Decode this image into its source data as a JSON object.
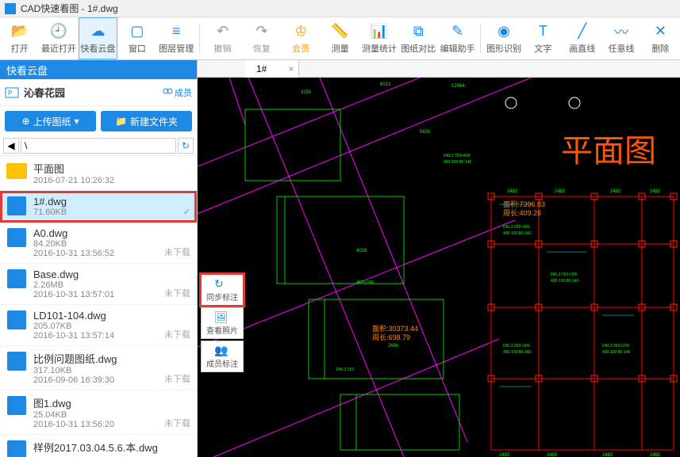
{
  "window": {
    "title": "CAD快速看图 - 1#.dwg"
  },
  "toolbar": [
    {
      "label": "打开",
      "color": "#1e88e5"
    },
    {
      "label": "最近打开",
      "color": "#1e88e5"
    },
    {
      "label": "快看云盘",
      "color": "#1e88e5",
      "active": true
    },
    {
      "label": "窗口",
      "color": "#1e88e5"
    },
    {
      "label": "图层管理",
      "color": "#1e88e5"
    },
    {
      "sep": true
    },
    {
      "label": "撤销",
      "color": "#999"
    },
    {
      "label": "恢复",
      "color": "#999"
    },
    {
      "label": "会员",
      "color": "#ff9800"
    },
    {
      "label": "测量",
      "color": "#1e88e5"
    },
    {
      "label": "测量统计",
      "color": "#1e88e5"
    },
    {
      "label": "图纸对比",
      "color": "#1e88e5"
    },
    {
      "label": "编辑助手",
      "color": "#1e88e5"
    },
    {
      "sep": true
    },
    {
      "label": "图形识别",
      "color": "#1e88e5"
    },
    {
      "label": "文字",
      "color": "#1e88e5"
    },
    {
      "label": "画直线",
      "color": "#1e88e5"
    },
    {
      "label": "任意线",
      "color": "#1e88e5"
    },
    {
      "label": "删除",
      "color": "#1e88e5"
    }
  ],
  "sidebar": {
    "header": "快看云盘",
    "project": "沁春花园",
    "members_label": "成员",
    "upload_btn": "上传图纸",
    "newfolder_btn": "新建文件夹",
    "path": "\\"
  },
  "files": [
    {
      "name": "平面图",
      "meta": "2016-07-21 10:26:32",
      "type": "folder"
    },
    {
      "name": "1#.dwg",
      "size": "71.60KB",
      "meta": "",
      "type": "dwg",
      "selected": true,
      "status": "✓"
    },
    {
      "name": "A0.dwg",
      "size": "84.20KB",
      "meta": "2016-10-31 13:56:52",
      "type": "dwg",
      "status": "未下载"
    },
    {
      "name": "Base.dwg",
      "size": "2.26MB",
      "meta": "2016-10-31 13:57:01",
      "type": "dwg",
      "status": "未下载"
    },
    {
      "name": "LD101-104.dwg",
      "size": "205.07KB",
      "meta": "2016-10-31 13:57:14",
      "type": "dwg",
      "status": "未下载"
    },
    {
      "name": "比例问题图纸.dwg",
      "size": "317.10KB",
      "meta": "2016-09-06 16:39:30",
      "type": "dwg",
      "status": "未下载"
    },
    {
      "name": "图1.dwg",
      "size": "25.04KB",
      "meta": "2016-10-31 13:56:20",
      "type": "dwg",
      "status": "未下载"
    },
    {
      "name": "样例2017.03.04.5.6.本.dwg",
      "size": "",
      "meta": "",
      "type": "dwg"
    }
  ],
  "tab": {
    "name": "1#"
  },
  "vtools": [
    {
      "label": "同步标注",
      "active": true
    },
    {
      "label": "查看照片"
    },
    {
      "label": "成员标注"
    }
  ],
  "drawing": {
    "plan_label": "平面图",
    "area_text1": "面积:7396.83",
    "perim_text1": "周长:409.26",
    "area_text2": "面积:30373.44",
    "perim_text2": "周长:698.79",
    "colors": {
      "magenta": "#ff00ff",
      "green": "#00ff00",
      "cyan": "#00ffff",
      "red": "#ff2200",
      "orange": "#ff8800",
      "white": "#ffffff"
    }
  }
}
